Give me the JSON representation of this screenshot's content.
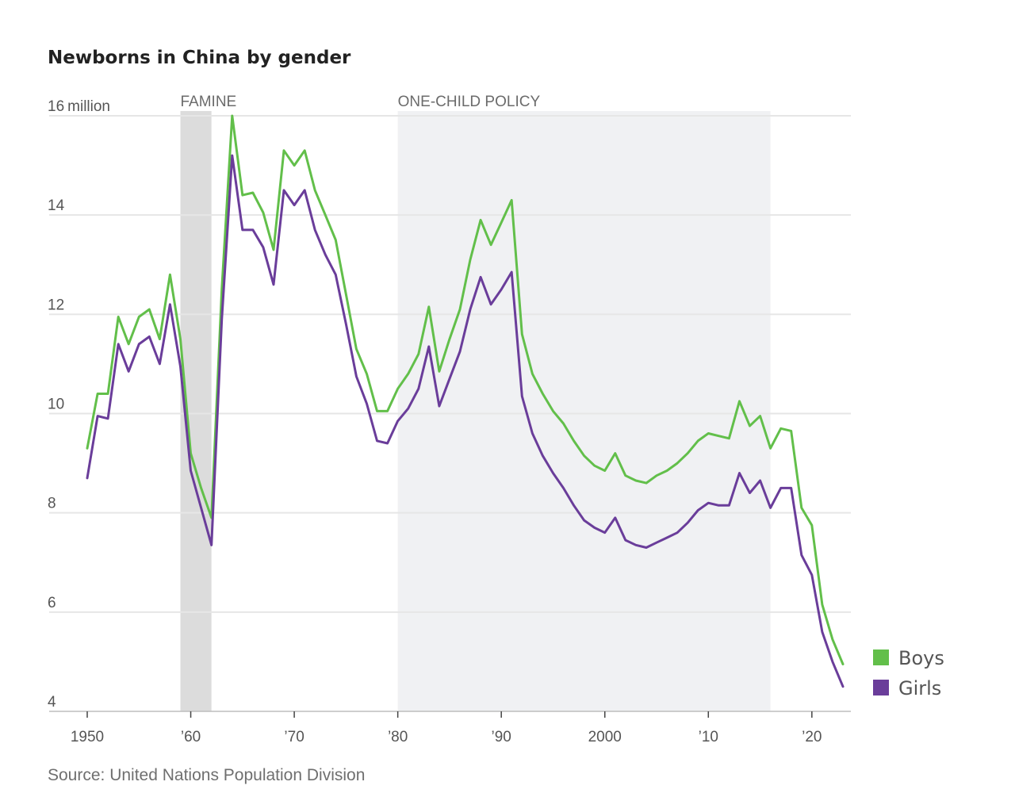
{
  "chart_data": {
    "type": "line",
    "title": "Newborns in China by gender",
    "source": "Source: United Nations Population Division",
    "y_unit_label": "million",
    "ylim": [
      4,
      16
    ],
    "yticks": [
      4,
      6,
      8,
      10,
      12,
      14,
      16
    ],
    "xlim": [
      1950,
      2023
    ],
    "xticks": [
      {
        "value": 1950,
        "label": "1950"
      },
      {
        "value": 1960,
        "label": "’60"
      },
      {
        "value": 1970,
        "label": "’70"
      },
      {
        "value": 1980,
        "label": "’80"
      },
      {
        "value": 1990,
        "label": "’90"
      },
      {
        "value": 2000,
        "label": "2000"
      },
      {
        "value": 2010,
        "label": "’10"
      },
      {
        "value": 2020,
        "label": "’20"
      }
    ],
    "grid": true,
    "legend_position": "bottom-right",
    "shaded_periods": [
      {
        "label": "FAMINE",
        "start": 1959,
        "end": 1962,
        "color": "#dcdcdc"
      },
      {
        "label": "ONE-CHILD POLICY",
        "start": 1980,
        "end": 2016,
        "color": "#f0f1f3"
      }
    ],
    "x": [
      1950,
      1951,
      1952,
      1953,
      1954,
      1955,
      1956,
      1957,
      1958,
      1959,
      1960,
      1961,
      1962,
      1963,
      1964,
      1965,
      1966,
      1967,
      1968,
      1969,
      1970,
      1971,
      1972,
      1973,
      1974,
      1975,
      1976,
      1977,
      1978,
      1979,
      1980,
      1981,
      1982,
      1983,
      1984,
      1985,
      1986,
      1987,
      1988,
      1989,
      1990,
      1991,
      1992,
      1993,
      1994,
      1995,
      1996,
      1997,
      1998,
      1999,
      2000,
      2001,
      2002,
      2003,
      2004,
      2005,
      2006,
      2007,
      2008,
      2009,
      2010,
      2011,
      2012,
      2013,
      2014,
      2015,
      2016,
      2017,
      2018,
      2019,
      2020,
      2021,
      2022,
      2023
    ],
    "series": [
      {
        "name": "Boys",
        "color": "#62bf4a",
        "values": [
          9.3,
          10.4,
          10.4,
          11.95,
          11.4,
          11.95,
          12.1,
          11.5,
          12.8,
          11.5,
          9.2,
          8.5,
          7.9,
          12.5,
          16.0,
          14.4,
          14.45,
          14.05,
          13.3,
          15.3,
          15.0,
          15.3,
          14.5,
          14.0,
          13.5,
          12.4,
          11.3,
          10.8,
          10.05,
          10.05,
          10.5,
          10.8,
          11.2,
          12.15,
          10.85,
          11.5,
          12.1,
          13.1,
          13.9,
          13.4,
          13.85,
          14.3,
          11.6,
          10.8,
          10.4,
          10.05,
          9.8,
          9.45,
          9.15,
          8.95,
          8.85,
          9.2,
          8.75,
          8.65,
          8.6,
          8.75,
          8.85,
          9.0,
          9.2,
          9.45,
          9.6,
          9.55,
          9.5,
          10.25,
          9.75,
          9.95,
          9.3,
          9.7,
          9.65,
          8.1,
          7.75,
          6.15,
          5.45,
          4.95
        ]
      },
      {
        "name": "Girls",
        "color": "#6a3d9a",
        "values": [
          8.7,
          9.95,
          9.9,
          11.4,
          10.85,
          11.4,
          11.55,
          11.0,
          12.2,
          10.95,
          8.85,
          8.1,
          7.35,
          11.9,
          15.2,
          13.7,
          13.7,
          13.35,
          12.6,
          14.5,
          14.2,
          14.5,
          13.7,
          13.2,
          12.8,
          11.8,
          10.75,
          10.2,
          9.45,
          9.4,
          9.85,
          10.1,
          10.5,
          11.35,
          10.15,
          10.7,
          11.25,
          12.1,
          12.75,
          12.2,
          12.5,
          12.85,
          10.35,
          9.6,
          9.15,
          8.8,
          8.5,
          8.15,
          7.85,
          7.7,
          7.6,
          7.9,
          7.45,
          7.35,
          7.3,
          7.4,
          7.5,
          7.6,
          7.8,
          8.05,
          8.2,
          8.15,
          8.15,
          8.8,
          8.4,
          8.65,
          8.1,
          8.5,
          8.5,
          7.15,
          6.75,
          5.6,
          5.0,
          4.5
        ]
      }
    ]
  }
}
